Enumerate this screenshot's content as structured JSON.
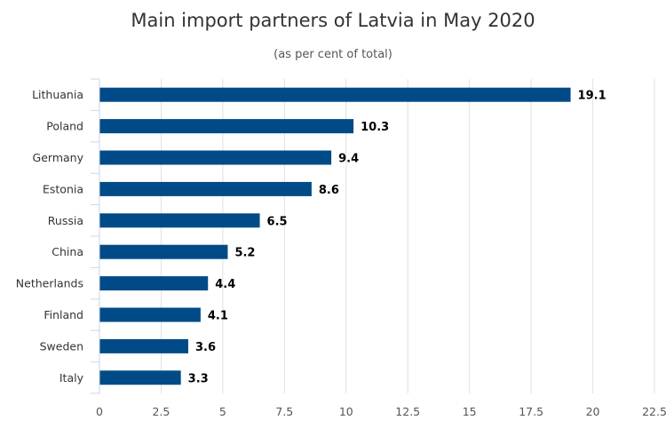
{
  "chart_data": {
    "type": "bar",
    "orientation": "horizontal",
    "title": "Main import partners of Latvia in May 2020",
    "subtitle": "(as per cent of total)",
    "categories": [
      "Lithuania",
      "Poland",
      "Germany",
      "Estonia",
      "Russia",
      "China",
      "Netherlands",
      "Finland",
      "Sweden",
      "Italy"
    ],
    "values": [
      19.1,
      10.3,
      9.4,
      8.6,
      6.5,
      5.2,
      4.4,
      4.1,
      3.6,
      3.3
    ],
    "data_labels": [
      "19.1",
      "10.3",
      "9.4",
      "8.6",
      "6.5",
      "5.2",
      "4.4",
      "4.1",
      "3.6",
      "3.3"
    ],
    "xlim": [
      0,
      22.5
    ],
    "x_ticks": [
      "0",
      "2.5",
      "5",
      "7.5",
      "10",
      "12.5",
      "15",
      "17.5",
      "20",
      "22.5"
    ],
    "grid": true,
    "legend": "none",
    "colors": {
      "bar": "#004b87",
      "grid": "#e0e0e0",
      "axis": "#ccd6eb"
    }
  }
}
